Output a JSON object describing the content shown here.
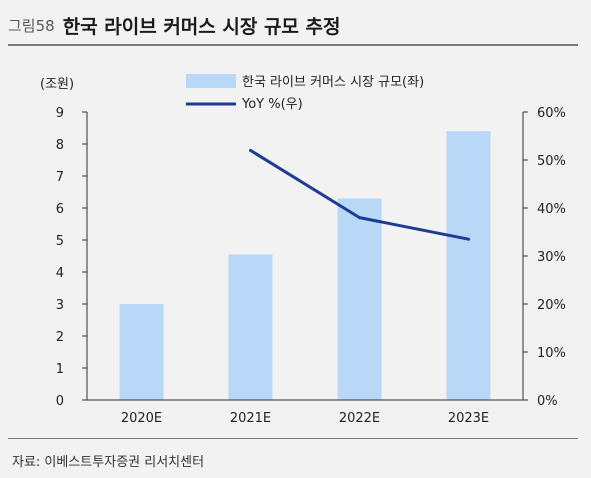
{
  "figure": {
    "label": "그림58",
    "title": "한국 라이브 커머스 시장 규모 추정",
    "source": "자료: 이베스트투자증권 리서치센터"
  },
  "chart_data": {
    "type": "bar",
    "categories": [
      "2020E",
      "2021E",
      "2022E",
      "2023E"
    ],
    "series": [
      {
        "name": "한국 라이브 커머스 시장 규모(좌)",
        "type": "bar",
        "axis": "left",
        "color": "#b9d7f7",
        "values": [
          3.0,
          4.55,
          6.3,
          8.4
        ]
      },
      {
        "name": "YoY %(우)",
        "type": "line",
        "axis": "right",
        "color": "#1f3c93",
        "values": [
          null,
          52,
          38,
          33.5
        ]
      }
    ],
    "y_left": {
      "unit_label": "(조원)",
      "range": [
        0,
        9
      ],
      "ticks": [
        "0",
        "1",
        "2",
        "3",
        "4",
        "5",
        "6",
        "7",
        "8",
        "9"
      ]
    },
    "y_right": {
      "range": [
        0,
        60
      ],
      "ticks": [
        "0%",
        "10%",
        "20%",
        "30%",
        "40%",
        "50%",
        "60%"
      ]
    },
    "grid": false,
    "legend_position": "top-center"
  }
}
